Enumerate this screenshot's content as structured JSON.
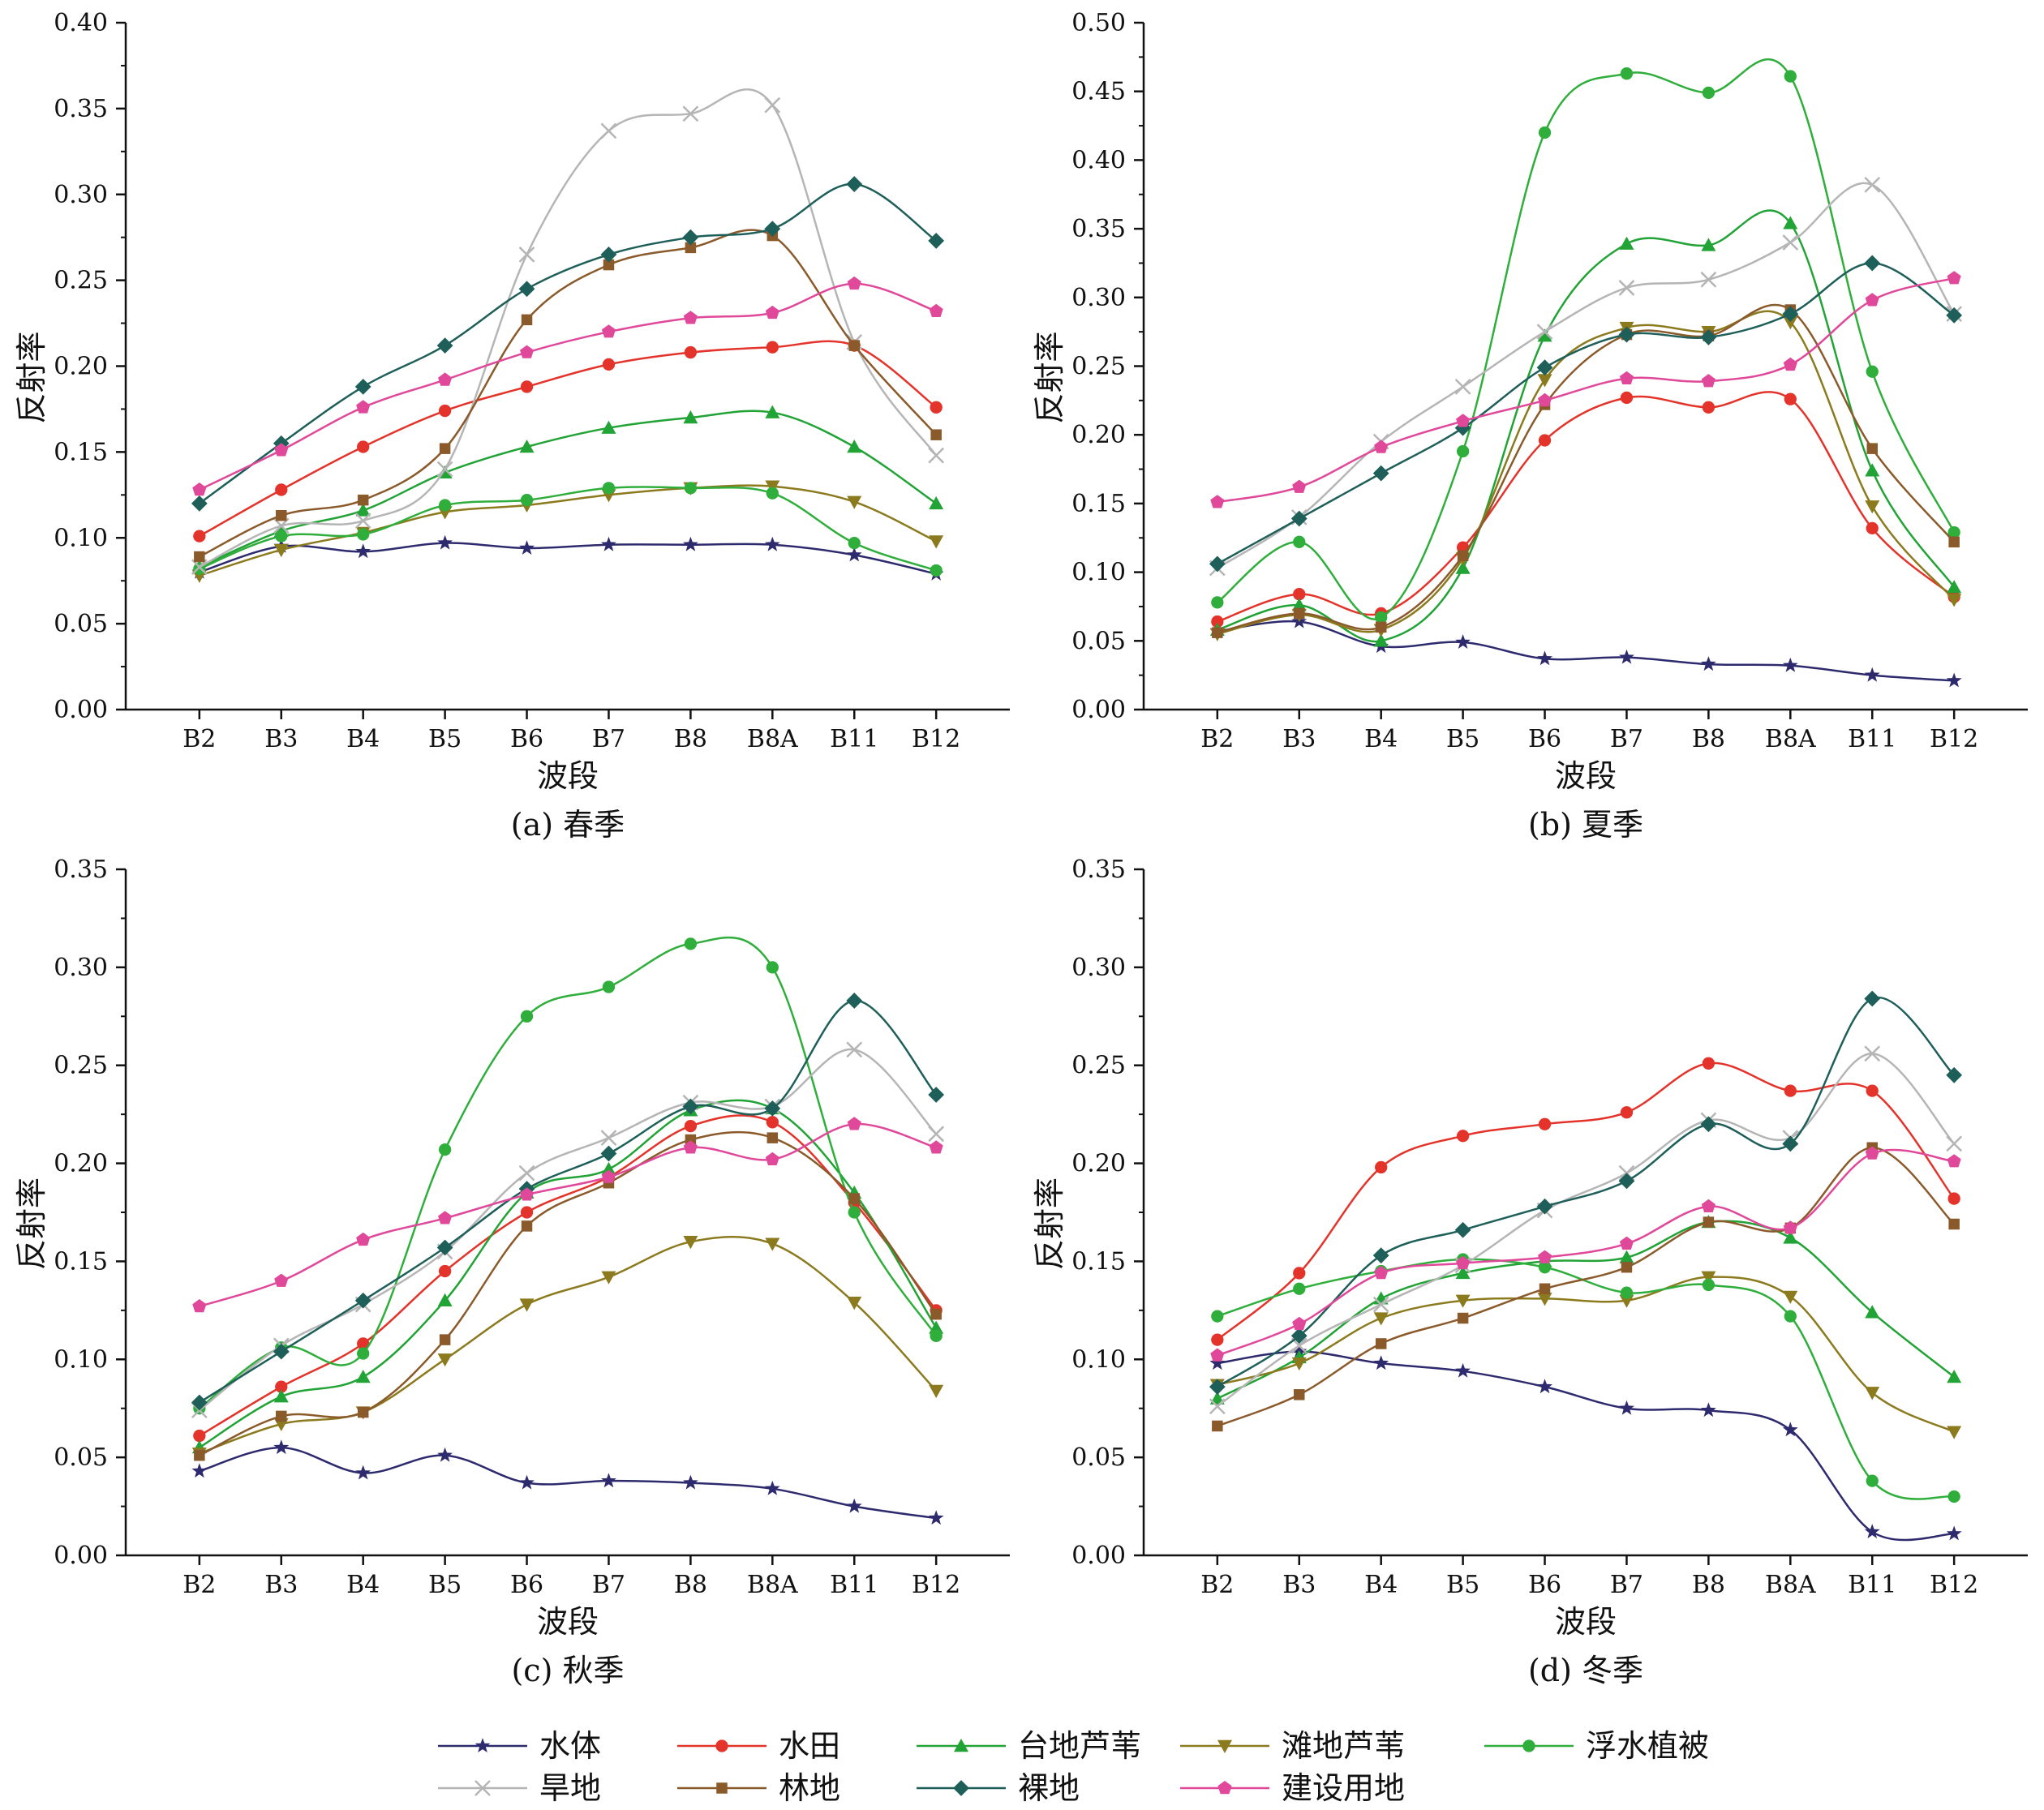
{
  "series_styles": [
    {
      "name": "水体",
      "color": "#2e2a6e",
      "marker": "star"
    },
    {
      "name": "水田",
      "color": "#e3332a",
      "marker": "circle"
    },
    {
      "name": "台地芦苇",
      "color": "#22a336",
      "marker": "triangle-up"
    },
    {
      "name": "滩地芦苇",
      "color": "#8b7a1e",
      "marker": "triangle-down"
    },
    {
      "name": "浮水植被",
      "color": "#2fae3c",
      "marker": "circle"
    },
    {
      "name": "旱地",
      "color": "#b5b5b5",
      "marker": "x"
    },
    {
      "name": "林地",
      "color": "#8b5a2b",
      "marker": "square"
    },
    {
      "name": "裸地",
      "color": "#1f5f5a",
      "marker": "diamond"
    },
    {
      "name": "建设用地",
      "color": "#e0489a",
      "marker": "pentagon"
    }
  ],
  "legend": {
    "rows": [
      [
        "水体",
        "水田",
        "台地芦苇",
        "滩地芦苇",
        "浮水植被"
      ],
      [
        "旱地",
        "林地",
        "裸地",
        "建设用地"
      ]
    ]
  },
  "chart_data": [
    {
      "type": "line",
      "caption": "(a) 春季",
      "xlabel": "波段",
      "ylabel": "反射率",
      "categories": [
        "B2",
        "B3",
        "B4",
        "B5",
        "B6",
        "B7",
        "B8",
        "B8A",
        "B11",
        "B12"
      ],
      "ylim": [
        0,
        0.4
      ],
      "yticks": [
        "0.00",
        "0.05",
        "0.10",
        "0.15",
        "0.20",
        "0.25",
        "0.30",
        "0.35",
        "0.40"
      ],
      "series": [
        {
          "name": "水体",
          "values": [
            0.08,
            0.095,
            0.092,
            0.097,
            0.094,
            0.096,
            0.096,
            0.096,
            0.09,
            0.079
          ]
        },
        {
          "name": "水田",
          "values": [
            0.101,
            0.128,
            0.153,
            0.174,
            0.188,
            0.201,
            0.208,
            0.211,
            0.212,
            0.176
          ]
        },
        {
          "name": "台地芦苇",
          "values": [
            0.083,
            0.104,
            0.116,
            0.138,
            0.153,
            0.164,
            0.17,
            0.173,
            0.153,
            0.12
          ]
        },
        {
          "name": "滩地芦苇",
          "values": [
            0.078,
            0.093,
            0.103,
            0.115,
            0.119,
            0.125,
            0.129,
            0.13,
            0.121,
            0.098
          ]
        },
        {
          "name": "浮水植被",
          "values": [
            0.082,
            0.101,
            0.102,
            0.119,
            0.122,
            0.129,
            0.129,
            0.126,
            0.097,
            0.081
          ]
        },
        {
          "name": "旱地",
          "values": [
            0.083,
            0.107,
            0.11,
            0.14,
            0.265,
            0.337,
            0.347,
            0.352,
            0.214,
            0.148
          ]
        },
        {
          "name": "林地",
          "values": [
            0.089,
            0.113,
            0.122,
            0.152,
            0.227,
            0.259,
            0.269,
            0.276,
            0.212,
            0.16
          ]
        },
        {
          "name": "裸地",
          "values": [
            0.12,
            0.155,
            0.188,
            0.212,
            0.245,
            0.265,
            0.275,
            0.28,
            0.306,
            0.273
          ]
        },
        {
          "name": "建设用地",
          "values": [
            0.128,
            0.151,
            0.176,
            0.192,
            0.208,
            0.22,
            0.228,
            0.231,
            0.248,
            0.232
          ]
        }
      ]
    },
    {
      "type": "line",
      "caption": "(b) 夏季",
      "xlabel": "波段",
      "ylabel": "反射率",
      "categories": [
        "B2",
        "B3",
        "B4",
        "B5",
        "B6",
        "B7",
        "B8",
        "B8A",
        "B11",
        "B12"
      ],
      "ylim": [
        0,
        0.5
      ],
      "yticks": [
        "0.00",
        "0.05",
        "0.10",
        "0.15",
        "0.20",
        "0.25",
        "0.30",
        "0.35",
        "0.40",
        "0.45",
        "0.50"
      ],
      "series": [
        {
          "name": "水体",
          "values": [
            0.057,
            0.064,
            0.046,
            0.049,
            0.037,
            0.038,
            0.033,
            0.032,
            0.025,
            0.021
          ]
        },
        {
          "name": "水田",
          "values": [
            0.064,
            0.084,
            0.07,
            0.118,
            0.196,
            0.227,
            0.22,
            0.226,
            0.132,
            0.082
          ]
        },
        {
          "name": "台地芦苇",
          "values": [
            0.058,
            0.076,
            0.05,
            0.103,
            0.272,
            0.339,
            0.338,
            0.354,
            0.174,
            0.089
          ]
        },
        {
          "name": "滩地芦苇",
          "values": [
            0.055,
            0.069,
            0.058,
            0.11,
            0.24,
            0.278,
            0.275,
            0.282,
            0.148,
            0.08
          ]
        },
        {
          "name": "浮水植被",
          "values": [
            0.078,
            0.122,
            0.067,
            0.188,
            0.42,
            0.463,
            0.449,
            0.461,
            0.246,
            0.129
          ]
        },
        {
          "name": "旱地",
          "values": [
            0.103,
            0.14,
            0.195,
            0.235,
            0.275,
            0.307,
            0.313,
            0.34,
            0.382,
            0.288
          ]
        },
        {
          "name": "林地",
          "values": [
            0.056,
            0.07,
            0.06,
            0.112,
            0.222,
            0.273,
            0.272,
            0.291,
            0.19,
            0.122
          ]
        },
        {
          "name": "裸地",
          "values": [
            0.106,
            0.139,
            0.172,
            0.205,
            0.249,
            0.273,
            0.271,
            0.288,
            0.325,
            0.287
          ]
        },
        {
          "name": "建设用地",
          "values": [
            0.151,
            0.162,
            0.191,
            0.21,
            0.225,
            0.241,
            0.239,
            0.251,
            0.298,
            0.314
          ]
        }
      ]
    },
    {
      "type": "line",
      "caption": "(c) 秋季",
      "xlabel": "波段",
      "ylabel": "反射率",
      "categories": [
        "B2",
        "B3",
        "B4",
        "B5",
        "B6",
        "B7",
        "B8",
        "B8A",
        "B11",
        "B12"
      ],
      "ylim": [
        0,
        0.35
      ],
      "yticks": [
        "0.00",
        "0.05",
        "0.10",
        "0.15",
        "0.20",
        "0.25",
        "0.30",
        "0.35"
      ],
      "series": [
        {
          "name": "水体",
          "values": [
            0.043,
            0.055,
            0.042,
            0.051,
            0.037,
            0.038,
            0.037,
            0.034,
            0.025,
            0.019
          ]
        },
        {
          "name": "水田",
          "values": [
            0.061,
            0.086,
            0.108,
            0.145,
            0.175,
            0.193,
            0.219,
            0.221,
            0.18,
            0.125
          ]
        },
        {
          "name": "台地芦苇",
          "values": [
            0.055,
            0.081,
            0.091,
            0.13,
            0.185,
            0.197,
            0.227,
            0.228,
            0.185,
            0.116
          ]
        },
        {
          "name": "滩地芦苇",
          "values": [
            0.052,
            0.067,
            0.073,
            0.1,
            0.128,
            0.142,
            0.16,
            0.159,
            0.129,
            0.084
          ]
        },
        {
          "name": "浮水植被",
          "values": [
            0.075,
            0.106,
            0.103,
            0.207,
            0.275,
            0.29,
            0.312,
            0.3,
            0.175,
            0.112
          ]
        },
        {
          "name": "旱地",
          "values": [
            0.074,
            0.107,
            0.128,
            0.155,
            0.195,
            0.213,
            0.231,
            0.229,
            0.258,
            0.215
          ]
        },
        {
          "name": "林地",
          "values": [
            0.051,
            0.071,
            0.073,
            0.11,
            0.168,
            0.19,
            0.212,
            0.213,
            0.182,
            0.123
          ]
        },
        {
          "name": "裸地",
          "values": [
            0.078,
            0.104,
            0.13,
            0.157,
            0.187,
            0.205,
            0.229,
            0.228,
            0.283,
            0.235
          ]
        },
        {
          "name": "建设用地",
          "values": [
            0.127,
            0.14,
            0.161,
            0.172,
            0.184,
            0.193,
            0.208,
            0.202,
            0.22,
            0.208
          ]
        }
      ]
    },
    {
      "type": "line",
      "caption": "(d) 冬季",
      "xlabel": "波段",
      "ylabel": "反射率",
      "categories": [
        "B2",
        "B3",
        "B4",
        "B5",
        "B6",
        "B7",
        "B8",
        "B8A",
        "B11",
        "B12"
      ],
      "ylim": [
        0,
        0.35
      ],
      "yticks": [
        "0.00",
        "0.05",
        "0.10",
        "0.15",
        "0.20",
        "0.25",
        "0.30",
        "0.35"
      ],
      "series": [
        {
          "name": "水体",
          "values": [
            0.098,
            0.104,
            0.098,
            0.094,
            0.086,
            0.075,
            0.074,
            0.064,
            0.012,
            0.011
          ]
        },
        {
          "name": "水田",
          "values": [
            0.11,
            0.144,
            0.198,
            0.214,
            0.22,
            0.226,
            0.251,
            0.237,
            0.237,
            0.182
          ]
        },
        {
          "name": "台地芦苇",
          "values": [
            0.08,
            0.101,
            0.131,
            0.144,
            0.15,
            0.152,
            0.17,
            0.162,
            0.124,
            0.091
          ]
        },
        {
          "name": "滩地芦苇",
          "values": [
            0.087,
            0.098,
            0.121,
            0.13,
            0.131,
            0.13,
            0.142,
            0.132,
            0.083,
            0.063
          ]
        },
        {
          "name": "浮水植被",
          "values": [
            0.122,
            0.136,
            0.145,
            0.151,
            0.147,
            0.134,
            0.138,
            0.122,
            0.038,
            0.03
          ]
        },
        {
          "name": "旱地",
          "values": [
            0.076,
            0.107,
            0.128,
            0.148,
            0.176,
            0.195,
            0.222,
            0.213,
            0.256,
            0.21
          ]
        },
        {
          "name": "林地",
          "values": [
            0.066,
            0.082,
            0.108,
            0.121,
            0.136,
            0.147,
            0.17,
            0.167,
            0.208,
            0.169
          ]
        },
        {
          "name": "裸地",
          "values": [
            0.086,
            0.112,
            0.153,
            0.166,
            0.178,
            0.191,
            0.22,
            0.21,
            0.284,
            0.245
          ]
        },
        {
          "name": "建设用地",
          "values": [
            0.102,
            0.118,
            0.144,
            0.149,
            0.152,
            0.159,
            0.178,
            0.167,
            0.205,
            0.201
          ]
        }
      ]
    }
  ]
}
